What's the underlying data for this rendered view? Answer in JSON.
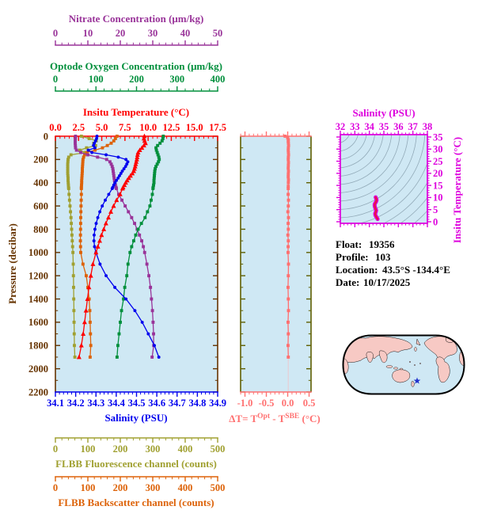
{
  "colors": {
    "background": "#ffffff",
    "plot_bg": "#cfe8f4",
    "pressure_axis": "#663300",
    "panel_frame": "#5f5f00",
    "nitrate": "#993399",
    "oxygen": "#008f3c",
    "temperature": "#ff0000",
    "salinity": "#0000ee",
    "fluorescence": "#a0a030",
    "backscatter": "#dd6208",
    "delta_t": "#ff7070",
    "ts_frame": "#dd00dd",
    "ts_curve_core": "#e8143c",
    "ts_contours": "#92aab8",
    "map_ocean": "#cfe8f4",
    "map_land": "#f7c9c4",
    "map_star": "#2233cc",
    "info_text": "#000000"
  },
  "float_info": {
    "rows": [
      {
        "label": "Float:",
        "value": "19356"
      },
      {
        "label": "Profile:",
        "value": "103"
      },
      {
        "label": "Location:",
        "value": "43.5°S -134.4°E"
      },
      {
        "label": "Date:",
        "value": "10/17/2025"
      }
    ]
  },
  "chart_data": [
    {
      "type": "line",
      "title": "BGC float profiles versus pressure",
      "yaxis": {
        "label": "Pressure (decibar)",
        "lim": [
          0,
          2200
        ],
        "minor": 100,
        "tick_labels": [
          "0",
          "200",
          "400",
          "600",
          "800",
          "1000",
          "1200",
          "1400",
          "1600",
          "1800",
          "2000",
          "2200"
        ]
      },
      "pressures": [
        0,
        20,
        40,
        60,
        80,
        100,
        120,
        140,
        160,
        180,
        200,
        220,
        240,
        260,
        280,
        300,
        320,
        340,
        360,
        380,
        400,
        420,
        440,
        450,
        500,
        550,
        600,
        650,
        700,
        750,
        800,
        850,
        900,
        950,
        1000,
        1100,
        1200,
        1300,
        1400,
        1500,
        1600,
        1700,
        1800,
        1900
      ],
      "series": [
        {
          "name": "Nitrate",
          "axis_title": "Nitrate Concentration (μm/kg)",
          "color": "#993399",
          "marker": "square",
          "lim": [
            0,
            50
          ],
          "minor": 2,
          "tick_values": [
            0,
            10,
            20,
            30,
            40,
            50
          ],
          "tick_labels": [
            "0",
            "10",
            "20",
            "30",
            "40",
            "50"
          ],
          "values": [
            6.2,
            6.15,
            6.1,
            6.1,
            6.15,
            6.2,
            6.5,
            7.8,
            10.0,
            13.0,
            15.8,
            16.8,
            17.2,
            17.5,
            17.7,
            17.8,
            17.9,
            18.0,
            18.1,
            18.2,
            18.3,
            18.5,
            18.7,
            18.8,
            19.5,
            20.5,
            21.5,
            22.5,
            23.5,
            24.4,
            25.2,
            25.9,
            26.6,
            27.1,
            27.5,
            28.2,
            28.8,
            29.3,
            29.6,
            29.9,
            30.1,
            30.25,
            30.3,
            29.8
          ]
        },
        {
          "name": "Optode Oxygen",
          "axis_title": "Optode Oxygen Concentration (μm/kg)",
          "color": "#008f3c",
          "marker": "square",
          "lim": [
            0,
            400
          ],
          "minor": 20,
          "tick_values": [
            0,
            100,
            200,
            300,
            400
          ],
          "tick_labels": [
            "0",
            "100",
            "200",
            "300",
            "400"
          ],
          "values": [
            266,
            265,
            263,
            258,
            252,
            248,
            249,
            251,
            253,
            255,
            256,
            254,
            251,
            248,
            246,
            245,
            244.5,
            244,
            243.5,
            243,
            243,
            242,
            241,
            240.5,
            239,
            236,
            233,
            227,
            221,
            212,
            204,
            198,
            193,
            188,
            184,
            179,
            176,
            171,
            168,
            163,
            160,
            157,
            154,
            152
          ]
        },
        {
          "name": "Insitu Temperature",
          "axis_title": "Insitu Temperature (°C)",
          "color": "#ff0000",
          "marker": "triangle",
          "lim": [
            0,
            17.5
          ],
          "minor": 0.5,
          "tick_values": [
            0,
            2.5,
            5,
            7.5,
            10,
            12.5,
            15,
            17.5
          ],
          "tick_labels": [
            "0.0",
            "2.5",
            "5.0",
            "7.5",
            "10.0",
            "12.5",
            "15.0",
            "17.5"
          ],
          "values": [
            9.6,
            9.55,
            9.62,
            9.72,
            9.55,
            9.33,
            9.1,
            8.92,
            8.86,
            8.82,
            8.78,
            8.72,
            8.66,
            8.6,
            8.53,
            8.45,
            8.3,
            8.1,
            7.92,
            7.74,
            7.58,
            7.44,
            7.3,
            7.24,
            6.98,
            6.6,
            6.28,
            5.98,
            5.72,
            5.45,
            5.22,
            4.98,
            4.78,
            4.58,
            4.38,
            4.05,
            3.82,
            3.62,
            3.46,
            3.3,
            3.15,
            3.0,
            2.8,
            2.55
          ]
        },
        {
          "name": "Salinity",
          "axis_title": "Salinity (PSU)",
          "color": "#0000ee",
          "marker": "circle",
          "lim": [
            34.1,
            34.9
          ],
          "minor": 0.02,
          "tick_values": [
            34.1,
            34.2,
            34.3,
            34.4,
            34.5,
            34.6,
            34.7,
            34.8,
            34.9
          ],
          "tick_labels": [
            "34.1",
            "34.2",
            "34.3",
            "34.4",
            "34.5",
            "34.6",
            "34.7",
            "34.8",
            "34.9"
          ],
          "values": [
            34.305,
            34.303,
            34.298,
            34.292,
            34.288,
            34.295,
            34.262,
            34.28,
            34.35,
            34.41,
            34.448,
            34.457,
            34.452,
            34.446,
            34.438,
            34.43,
            34.423,
            34.416,
            34.409,
            34.401,
            34.394,
            34.388,
            34.383,
            34.38,
            34.363,
            34.346,
            34.331,
            34.319,
            34.309,
            34.301,
            34.295,
            34.291,
            34.29,
            34.293,
            34.3,
            34.32,
            34.35,
            34.393,
            34.448,
            34.492,
            34.528,
            34.558,
            34.588,
            34.61
          ]
        },
        {
          "name": "FLBB Fluorescence",
          "axis_title": "FLBB Fluorescence channel (counts)",
          "color": "#a0a030",
          "marker": "square",
          "lim": [
            0,
            500
          ],
          "minor": 20,
          "tick_values": [
            0,
            100,
            200,
            300,
            400,
            500
          ],
          "tick_labels": [
            "0",
            "100",
            "200",
            "300",
            "400",
            "500"
          ],
          "values": [
            80,
            104,
            126,
            118,
            124,
            96,
            75,
            92,
            48,
            41,
            39,
            38.5,
            38,
            38,
            38,
            38,
            38,
            38.5,
            39,
            39,
            39.5,
            40,
            40.5,
            41,
            42,
            43.5,
            45,
            46.5,
            48,
            49,
            50,
            51,
            52,
            53,
            54,
            55,
            55.5,
            56,
            56.5,
            57,
            57.5,
            58,
            58.5,
            60
          ]
        },
        {
          "name": "FLBB Backscatter",
          "axis_title": "FLBB Backscatter channel (counts)",
          "color": "#dd6208",
          "marker": "square",
          "lim": [
            0,
            500
          ],
          "minor": 20,
          "tick_values": [
            0,
            100,
            200,
            300,
            400,
            500
          ],
          "tick_labels": [
            "0",
            "100",
            "200",
            "300",
            "400",
            "500"
          ],
          "values": [
            190,
            185,
            180,
            172,
            160,
            145,
            122,
            97,
            90,
            87,
            85,
            84.5,
            84,
            83.5,
            83,
            83,
            82.5,
            82,
            81.5,
            81,
            81,
            80.5,
            80,
            80,
            80,
            79.5,
            79,
            78.5,
            78,
            77.8,
            77.5,
            77.2,
            77,
            77.5,
            78,
            85,
            95,
            100,
            104,
            106,
            107,
            108,
            109,
            107
          ]
        }
      ]
    },
    {
      "type": "line",
      "title": "Optode minus SBE temperature difference",
      "xlabel_parts": {
        "prefix": "ΔT= T",
        "sup1": "Opt",
        "mid": " - T",
        "sup2": "SBE",
        "suffix": " (°C)"
      },
      "xaxis": {
        "color": "#ff7070",
        "lim": [
          -1.102,
          0.546
        ],
        "minor": 0.1,
        "tick_values": [
          -1,
          -0.5,
          0,
          0.5
        ],
        "tick_labels": [
          "-1.0",
          "-0.5",
          "0.0",
          "0.5"
        ]
      },
      "ylim": [
        0,
        2200
      ],
      "series": [
        {
          "name": "ΔT",
          "color": "#ff7070",
          "marker": "square",
          "lim": [
            -1.102,
            0.546
          ],
          "points": [
            [
              0,
              -0.06
            ],
            [
              15,
              0.0
            ],
            [
              30,
              0.015
            ],
            [
              45,
              0.012
            ],
            [
              60,
              0.016
            ],
            [
              80,
              0.02
            ],
            [
              100,
              0.015
            ],
            [
              120,
              0.013
            ],
            [
              140,
              0.016
            ],
            [
              160,
              0.02
            ],
            [
              180,
              0.015
            ],
            [
              200,
              0.013
            ],
            [
              225,
              0.018
            ],
            [
              250,
              0.015
            ],
            [
              275,
              0.012
            ],
            [
              300,
              0.018
            ],
            [
              325,
              0.014
            ],
            [
              350,
              0.012
            ],
            [
              375,
              0.018
            ],
            [
              400,
              0.015
            ],
            [
              430,
              0.013
            ],
            [
              450,
              0.012
            ],
            [
              500,
              0.01
            ],
            [
              550,
              0.018
            ],
            [
              600,
              0.014
            ],
            [
              650,
              0.004
            ],
            [
              700,
              0.018
            ],
            [
              750,
              0.01
            ],
            [
              800,
              0.014
            ],
            [
              850,
              0.004
            ],
            [
              900,
              0.014
            ],
            [
              950,
              0.01
            ],
            [
              1000,
              0.008
            ],
            [
              1100,
              0.018
            ],
            [
              1200,
              0.014
            ],
            [
              1300,
              0.008
            ],
            [
              1400,
              0.014
            ],
            [
              1500,
              0.018
            ],
            [
              1600,
              0.008
            ],
            [
              1700,
              0.014
            ],
            [
              1800,
              0.008
            ],
            [
              1900,
              0.014
            ]
          ]
        }
      ]
    },
    {
      "type": "line",
      "title": "T-S diagram with isopycnal contours",
      "xlabel": "Salinity (PSU)",
      "ylabel": "Insitu Temperature (°C)",
      "xlim": [
        32,
        38
      ],
      "ylim": [
        0,
        35
      ],
      "xticks": [
        32,
        33,
        34,
        35,
        36,
        37,
        38
      ],
      "xtick_labels": [
        "32",
        "33",
        "34",
        "35",
        "36",
        "37",
        "38"
      ],
      "yticks": [
        0,
        5,
        10,
        15,
        20,
        25,
        30,
        35
      ],
      "ytick_labels": [
        "0",
        "5",
        "10",
        "15",
        "20",
        "25",
        "30",
        "35"
      ],
      "contours_note": "unlabeled density contour arcs",
      "series": [
        {
          "name": "T-S profile curve",
          "color": "#dd00dd",
          "points": [
            [
              34.43,
              10.1
            ],
            [
              34.48,
              9.4
            ],
            [
              34.5,
              8.9
            ],
            [
              34.46,
              8.2
            ],
            [
              34.38,
              7.4
            ],
            [
              34.36,
              6.9
            ],
            [
              34.38,
              6.2
            ],
            [
              34.42,
              5.4
            ],
            [
              34.47,
              4.7
            ],
            [
              34.45,
              4.1
            ],
            [
              34.4,
              3.4
            ],
            [
              34.41,
              2.8
            ],
            [
              34.46,
              2.2
            ],
            [
              34.52,
              1.6
            ],
            [
              34.57,
              1.1
            ]
          ]
        }
      ]
    }
  ]
}
